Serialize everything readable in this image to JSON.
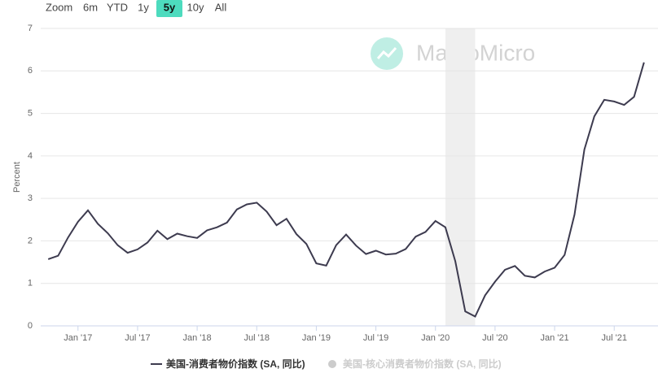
{
  "zoom": {
    "label": "Zoom",
    "buttons": [
      "6m",
      "YTD",
      "1y",
      "5y",
      "10y",
      "All"
    ],
    "selected": "5y"
  },
  "watermark": "MacroMicro",
  "chart_data": {
    "type": "line",
    "y_label": "Percent",
    "x": [
      "2016-10",
      "2016-11",
      "2016-12",
      "2017-01",
      "2017-02",
      "2017-03",
      "2017-04",
      "2017-05",
      "2017-06",
      "2017-07",
      "2017-08",
      "2017-09",
      "2017-10",
      "2017-11",
      "2017-12",
      "2018-01",
      "2018-02",
      "2018-03",
      "2018-04",
      "2018-05",
      "2018-06",
      "2018-07",
      "2018-08",
      "2018-09",
      "2018-10",
      "2018-11",
      "2018-12",
      "2019-01",
      "2019-02",
      "2019-03",
      "2019-04",
      "2019-05",
      "2019-06",
      "2019-07",
      "2019-08",
      "2019-09",
      "2019-10",
      "2019-11",
      "2019-12",
      "2020-01",
      "2020-02",
      "2020-03",
      "2020-04",
      "2020-05",
      "2020-06",
      "2020-07",
      "2020-08",
      "2020-09",
      "2020-10",
      "2020-11",
      "2020-12",
      "2021-01",
      "2021-02",
      "2021-03",
      "2021-04",
      "2021-05",
      "2021-06",
      "2021-07",
      "2021-08",
      "2021-09",
      "2021-10"
    ],
    "series": [
      {
        "name": "美国-消费者物价指数 (SA, 同比)",
        "color": "#3d3b4f",
        "values": [
          1.57,
          1.65,
          2.08,
          2.45,
          2.72,
          2.4,
          2.18,
          1.9,
          1.72,
          1.8,
          1.96,
          2.24,
          2.04,
          2.17,
          2.11,
          2.07,
          2.25,
          2.32,
          2.43,
          2.74,
          2.86,
          2.9,
          2.69,
          2.37,
          2.52,
          2.16,
          1.93,
          1.47,
          1.42,
          1.9,
          2.15,
          1.89,
          1.69,
          1.77,
          1.68,
          1.7,
          1.81,
          2.1,
          2.21,
          2.47,
          2.32,
          1.52,
          0.34,
          0.22,
          0.72,
          1.04,
          1.32,
          1.41,
          1.18,
          1.14,
          1.28,
          1.37,
          1.67,
          2.62,
          4.15,
          4.93,
          5.32,
          5.28,
          5.2,
          5.39,
          6.2
        ]
      },
      {
        "name": "美国-核心消费者物价指数 (SA, 同比)",
        "color": "#cccccc",
        "visible": false
      }
    ],
    "bands": [
      {
        "from": "2020-02",
        "to": "2020-05",
        "color": "#efefef"
      }
    ],
    "xlim": [
      "2016-09",
      "2021-11"
    ],
    "xticks": [
      {
        "value": "2017-01",
        "label": "Jan '17"
      },
      {
        "value": "2017-07",
        "label": "Jul '17"
      },
      {
        "value": "2018-01",
        "label": "Jan '18"
      },
      {
        "value": "2018-07",
        "label": "Jul '18"
      },
      {
        "value": "2019-01",
        "label": "Jan '19"
      },
      {
        "value": "2019-07",
        "label": "Jul '19"
      },
      {
        "value": "2020-01",
        "label": "Jan '20"
      },
      {
        "value": "2020-07",
        "label": "Jul '20"
      },
      {
        "value": "2021-01",
        "label": "Jan '21"
      },
      {
        "value": "2021-07",
        "label": "Jul '21"
      }
    ],
    "ylim": [
      0,
      7
    ],
    "yticks": [
      0,
      1,
      2,
      3,
      4,
      5,
      6,
      7
    ],
    "grid": true
  }
}
